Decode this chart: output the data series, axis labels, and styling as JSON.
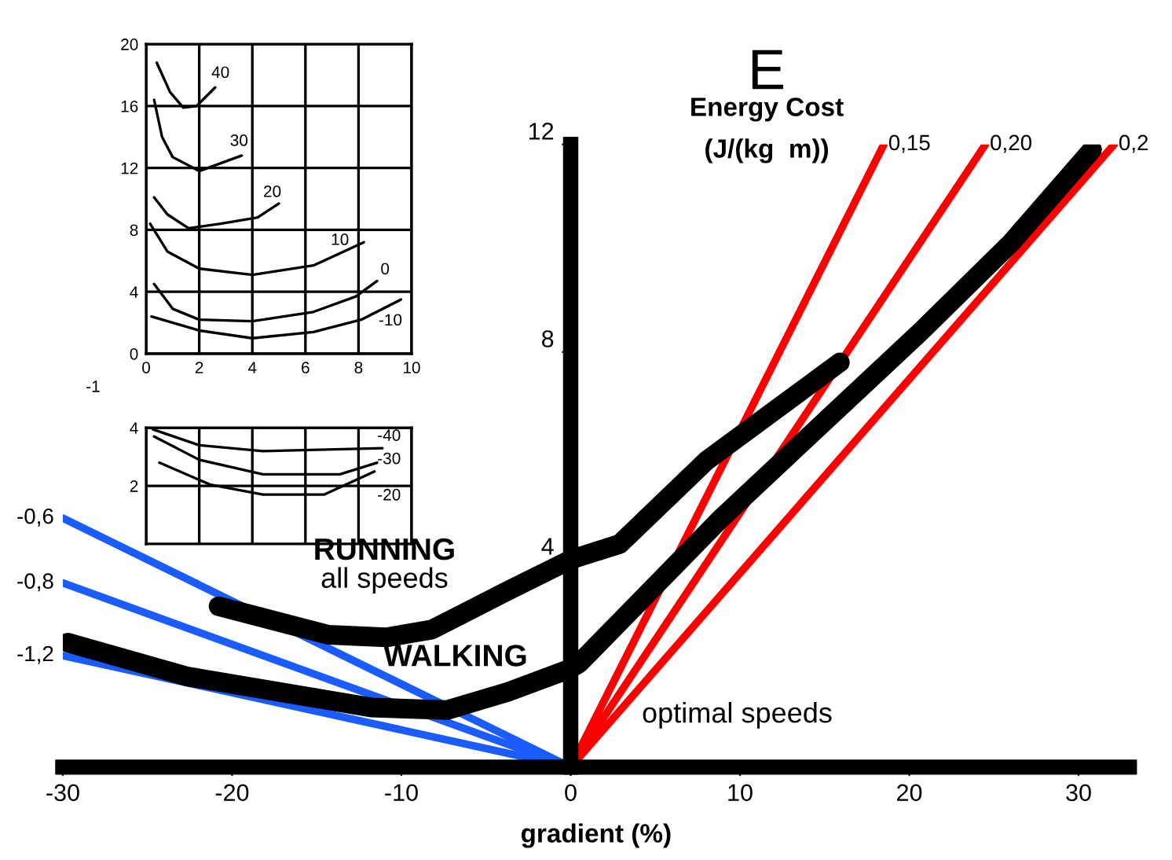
{
  "chart_data": [
    {
      "type": "line",
      "title": "E",
      "xlabel": "gradient (%)",
      "ylabel": "Energy Cost\n(J/(kg  m))",
      "xlim": [
        -30,
        33
      ],
      "xticks": [
        -30,
        -20,
        -10,
        0,
        10,
        20,
        30
      ],
      "ylim": [
        0,
        12
      ],
      "yticks": [
        4,
        8,
        12
      ],
      "grid": false,
      "series": [
        {
          "color": "#ff0000",
          "x": [
            0,
            18.5
          ],
          "values": [
            0,
            12
          ]
        },
        {
          "color": "#ff0000",
          "x": [
            0,
            24.5
          ],
          "values": [
            0,
            12
          ]
        },
        {
          "color": "#ff0000",
          "x": [
            0,
            32.1
          ],
          "values": [
            0,
            12
          ]
        },
        {
          "color": "#1a5cff",
          "x": [
            -30,
            0
          ],
          "values": [
            4.8,
            0
          ]
        },
        {
          "color": "#1a5cff",
          "x": [
            -30,
            0
          ],
          "values": [
            3.55,
            0
          ]
        },
        {
          "color": "#1a5cff",
          "x": [
            -30,
            0
          ],
          "values": [
            2.15,
            0
          ]
        },
        {
          "color": "#000000",
          "x": [
            -20.8,
            -14.3,
            -10.9,
            -8.2,
            -3.7,
            0,
            2.9,
            8,
            15.9
          ],
          "values": [
            3.1,
            2.55,
            2.5,
            2.65,
            3.4,
            4.0,
            4.3,
            5.9,
            7.8
          ]
        },
        {
          "color": "#000000",
          "x": [
            -29.7,
            -22.7,
            -11.8,
            -7.3,
            -3.7,
            0,
            0.5,
            8.9,
            20.7,
            26,
            30.8
          ],
          "values": [
            2.4,
            1.75,
            1.15,
            1.1,
            1.45,
            1.9,
            2.0,
            4.8,
            8.4,
            10.1,
            11.9
          ]
        }
      ],
      "annotations": [
        {
          "text": "0,15",
          "x": 18.5,
          "y": 12
        },
        {
          "text": "0,20",
          "x": 24.5,
          "y": 12
        },
        {
          "text": "0,2",
          "x": 32.1,
          "y": 12
        },
        {
          "text": "-0,6",
          "x": -30,
          "y": 4.8
        },
        {
          "text": "-0,8",
          "x": -30,
          "y": 3.55
        },
        {
          "text": "-1,2",
          "x": -30,
          "y": 2.15
        },
        "RUNNING",
        "all speeds",
        "WALKING",
        "optimal speeds"
      ]
    },
    {
      "type": "line",
      "xlim": [
        0,
        10
      ],
      "xticks": [
        0,
        2,
        4,
        6,
        8,
        10
      ],
      "ylim": [
        0,
        20
      ],
      "yticks": [
        0,
        4,
        8,
        12,
        16,
        20
      ],
      "grid": true,
      "series": [
        {
          "color": "#000000",
          "x": [
            0.4,
            0.9,
            1.4,
            1.9,
            2.6
          ],
          "values": [
            18.8,
            16.9,
            15.9,
            16.0,
            17.2
          ]
        },
        {
          "color": "#000000",
          "x": [
            0.3,
            0.6,
            1.0,
            2.0,
            3.6
          ],
          "values": [
            16.4,
            14.0,
            12.7,
            11.8,
            12.8
          ]
        },
        {
          "color": "#000000",
          "x": [
            0.3,
            0.8,
            1.6,
            2.8,
            4.2,
            5.0
          ],
          "values": [
            10.1,
            9.0,
            8.1,
            8.4,
            8.8,
            9.7
          ]
        },
        {
          "color": "#000000",
          "x": [
            0.15,
            0.8,
            2.0,
            4.0,
            6.3,
            8.2
          ],
          "values": [
            8.4,
            6.6,
            5.5,
            5.1,
            5.7,
            7.2
          ]
        },
        {
          "color": "#000000",
          "x": [
            0.3,
            1.0,
            2.0,
            4.0,
            6.3,
            7.9,
            8.7
          ],
          "values": [
            4.5,
            2.9,
            2.2,
            2.1,
            2.7,
            3.7,
            4.7
          ]
        },
        {
          "color": "#000000",
          "x": [
            0.2,
            2.0,
            4.0,
            6.3,
            8.1,
            9.6
          ],
          "values": [
            2.4,
            1.5,
            1.0,
            1.4,
            2.2,
            3.5
          ]
        }
      ],
      "annotations": [
        "40",
        "30",
        "20",
        "10",
        "0",
        "-10",
        "-1"
      ]
    },
    {
      "type": "line",
      "xlim": [
        0,
        10
      ],
      "xticks": [
        0,
        2,
        4,
        6,
        8,
        10
      ],
      "ylim": [
        0,
        4
      ],
      "yticks": [
        2,
        4
      ],
      "grid": true,
      "tick_labels": "y",
      "series": [
        {
          "color": "#000000",
          "x": [
            0.25,
            2.0,
            4.4,
            8.9
          ],
          "values": [
            3.95,
            3.4,
            3.2,
            3.3
          ]
        },
        {
          "color": "#000000",
          "x": [
            0.3,
            2.0,
            4.4,
            7.3,
            8.7
          ],
          "values": [
            3.7,
            2.9,
            2.4,
            2.4,
            2.8
          ]
        },
        {
          "color": "#000000",
          "x": [
            0.5,
            2.4,
            4.4,
            6.7,
            8.6
          ],
          "values": [
            2.8,
            2.05,
            1.7,
            1.7,
            2.5
          ]
        }
      ],
      "annotations": [
        "-40",
        "-30",
        "-20"
      ]
    }
  ]
}
